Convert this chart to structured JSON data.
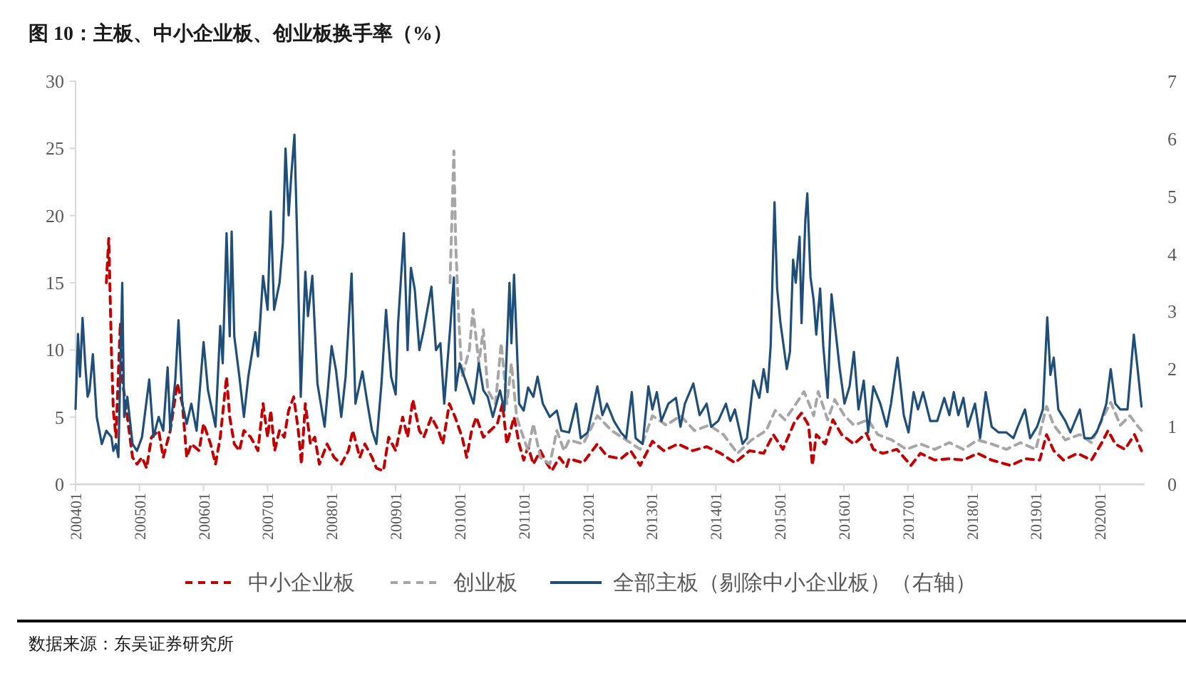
{
  "chart_data": {
    "type": "line",
    "title": "图 10：主板、中小企业板、创业板换手率（%）",
    "annotations": [
      "数据来源：东吴证券研究所"
    ],
    "legend": "bottom",
    "grid": false,
    "xlim": [
      "2004-01-01",
      "2020-09-13"
    ],
    "xticks": [
      {
        "value": "2004-01",
        "label": "200401"
      },
      {
        "value": "2005-01",
        "label": "200501"
      },
      {
        "value": "2006-01",
        "label": "200601"
      },
      {
        "value": "2007-01",
        "label": "200701"
      },
      {
        "value": "2008-01",
        "label": "200801"
      },
      {
        "value": "2009-01",
        "label": "200901"
      },
      {
        "value": "2010-01",
        "label": "201001"
      },
      {
        "value": "2011-01",
        "label": "201101"
      },
      {
        "value": "2012-01",
        "label": "201201"
      },
      {
        "value": "2013-01",
        "label": "201301"
      },
      {
        "value": "2014-01",
        "label": "201401"
      },
      {
        "value": "2015-01",
        "label": "201501"
      },
      {
        "value": "2016-01",
        "label": "201601"
      },
      {
        "value": "2017-01",
        "label": "201701"
      },
      {
        "value": "2018-01",
        "label": "201801"
      },
      {
        "value": "2019-01",
        "label": "201901"
      },
      {
        "value": "2020-01",
        "label": "202001"
      }
    ],
    "ylim": [
      0,
      30
    ],
    "yticks": [
      0,
      5,
      10,
      15,
      20,
      25,
      30
    ],
    "y2lim": [
      0,
      7
    ],
    "y2ticks": [
      0,
      1,
      2,
      3,
      4,
      5,
      6,
      7
    ],
    "series": [
      {
        "name": "中小企业板",
        "color": "#c00000",
        "line_style": "dashed",
        "x": [
          "2004-06-25",
          "2004-07-09",
          "2004-07-24",
          "2004-08-04",
          "2004-08-19",
          "2004-09-13",
          "2004-09-27",
          "2004-10-23",
          "2004-11-22",
          "2004-12-17",
          "2005-01-15",
          "2005-02-10",
          "2005-03-10",
          "2005-04-20",
          "2005-05-16",
          "2005-06-25",
          "2005-08-04",
          "2005-09-02",
          "2005-09-27",
          "2005-10-23",
          "2005-12-06",
          "2006-01-01",
          "2006-02-10",
          "2006-03-10",
          "2006-04-06",
          "2006-05-12",
          "2006-05-30",
          "2006-06-25",
          "2006-07-24",
          "2006-08-19",
          "2006-09-27",
          "2006-11-07",
          "2006-12-06",
          "2007-01-01",
          "2007-01-19",
          "2007-02-10",
          "2007-03-10",
          "2007-04-06",
          "2007-05-01",
          "2007-05-30",
          "2007-06-25",
          "2007-07-13",
          "2007-08-04",
          "2007-09-02",
          "2007-09-27",
          "2007-10-23",
          "2007-12-06",
          "2008-01-15",
          "2008-02-25",
          "2008-04-06",
          "2008-05-01",
          "2008-06-10",
          "2008-07-09",
          "2008-08-19",
          "2008-09-13",
          "2008-10-23",
          "2008-11-22",
          "2009-01-01",
          "2009-02-10",
          "2009-03-10",
          "2009-04-09",
          "2009-05-16",
          "2009-06-10",
          "2009-07-24",
          "2009-09-02",
          "2009-09-27",
          "2009-11-03",
          "2009-12-06",
          "2010-01-15",
          "2010-02-10",
          "2010-03-10",
          "2010-04-06",
          "2010-05-16",
          "2010-06-25",
          "2010-08-04",
          "2010-09-02",
          "2010-09-27",
          "2010-11-07",
          "2010-12-06",
          "2011-01-01",
          "2011-01-26",
          "2011-02-25",
          "2011-04-06",
          "2011-05-16",
          "2011-06-10",
          "2011-07-24",
          "2011-09-02",
          "2011-09-17",
          "2011-12-06",
          "2012-02-25",
          "2012-04-20",
          "2012-07-09",
          "2012-09-02",
          "2012-10-27",
          "2013-01-05",
          "2013-03-10",
          "2013-05-30",
          "2013-08-22",
          "2013-11-10",
          "2014-01-30",
          "2014-04-20",
          "2014-07-13",
          "2014-10-01",
          "2014-11-25",
          "2015-01-19",
          "2015-03-25",
          "2015-05-05",
          "2015-06-14",
          "2015-07-06",
          "2015-07-28",
          "2015-09-17",
          "2015-10-31",
          "2015-12-20",
          "2016-02-28",
          "2016-05-09",
          "2016-06-18",
          "2016-08-11",
          "2016-10-31",
          "2017-01-19",
          "2017-03-14",
          "2017-06-03",
          "2017-08-26",
          "2017-11-14",
          "2018-02-03",
          "2018-04-24",
          "2018-08-11",
          "2018-10-31",
          "2019-01-23",
          "2019-03-03",
          "2019-04-13",
          "2019-06-07",
          "2019-08-26",
          "2019-11-14",
          "2020-01-08",
          "2020-02-17",
          "2020-03-29",
          "2020-05-23",
          "2020-07-17",
          "2020-08-26"
        ],
        "values": [
          15,
          18.3,
          10,
          5.5,
          3.5,
          12,
          7.5,
          5,
          2,
          1.5,
          2,
          1.2,
          3.5,
          4,
          2,
          4,
          7.5,
          6,
          2,
          3,
          2.5,
          4.5,
          3,
          1.5,
          3.5,
          8,
          5,
          3,
          2.5,
          4,
          3.5,
          2.5,
          6,
          3.5,
          5.5,
          2.5,
          4,
          3.5,
          5.5,
          6.5,
          4,
          1.5,
          6,
          3,
          3.5,
          1.5,
          3,
          2,
          1.5,
          2.5,
          4,
          2,
          3,
          2,
          1.2,
          1,
          3.5,
          2.5,
          5,
          3.5,
          6.3,
          4,
          3.5,
          5,
          4,
          3,
          6,
          5,
          3.5,
          2,
          4,
          5,
          3.5,
          4,
          4.5,
          6,
          3,
          5,
          3,
          1.8,
          2.8,
          1.5,
          2.5,
          1.5,
          1,
          2,
          1.3,
          1.9,
          1.6,
          3,
          2.1,
          1.9,
          2.5,
          1.4,
          3.2,
          2.5,
          3,
          2.5,
          2.8,
          2.3,
          1.6,
          2.5,
          2.3,
          3.7,
          2.6,
          4.6,
          5.3,
          4.4,
          1.4,
          3.7,
          3,
          4.8,
          3.7,
          3,
          3.8,
          2.6,
          2.3,
          2.6,
          1.4,
          2.3,
          1.8,
          1.9,
          1.8,
          2.3,
          1.8,
          1.4,
          1.9,
          1.8,
          3.7,
          2.5,
          1.8,
          2.3,
          1.8,
          3,
          4,
          3,
          2.6,
          3.7,
          2.5
        ]
      },
      {
        "name": "创业板",
        "color": "#a6a6a6",
        "line_style": "dashed",
        "x": [
          "2009-11-07",
          "2009-11-29",
          "2009-12-09",
          "2009-12-28",
          "2010-01-15",
          "2010-02-25",
          "2010-03-18",
          "2010-04-20",
          "2010-05-16",
          "2010-06-10",
          "2010-07-24",
          "2010-08-26",
          "2010-09-27",
          "2010-10-23",
          "2010-11-22",
          "2010-12-17",
          "2011-01-26",
          "2011-02-25",
          "2011-04-06",
          "2011-05-30",
          "2011-07-09",
          "2011-08-19",
          "2011-09-17",
          "2011-12-06",
          "2012-02-25",
          "2012-05-16",
          "2012-08-08",
          "2012-10-27",
          "2013-01-05",
          "2013-03-25",
          "2013-06-14",
          "2013-09-02",
          "2013-11-25",
          "2014-02-14",
          "2014-05-05",
          "2014-07-24",
          "2014-10-16",
          "2014-12-06",
          "2015-01-30",
          "2015-04-09",
          "2015-05-19",
          "2015-06-14",
          "2015-07-13",
          "2015-08-08",
          "2015-10-01",
          "2015-11-10",
          "2016-01-05",
          "2016-02-28",
          "2016-05-19",
          "2016-07-13",
          "2016-10-01",
          "2016-12-24",
          "2017-03-14",
          "2017-06-03",
          "2017-08-26",
          "2017-11-14",
          "2018-02-03",
          "2018-04-24",
          "2018-07-17",
          "2018-10-05",
          "2019-01-01",
          "2019-03-03",
          "2019-04-13",
          "2019-06-18",
          "2019-09-09",
          "2019-11-14",
          "2020-01-23",
          "2020-03-03",
          "2020-04-27",
          "2020-06-21",
          "2020-07-31",
          "2020-08-26"
        ],
        "values": [
          15,
          24.8,
          18,
          12,
          8,
          10,
          13,
          9,
          11.5,
          7,
          6,
          10.5,
          6,
          9,
          5,
          4,
          2.5,
          4.5,
          2,
          1.5,
          4,
          2.5,
          3.3,
          3,
          5.1,
          4,
          3.3,
          2.6,
          5.1,
          4.4,
          5.1,
          4,
          4.4,
          3.7,
          2.3,
          3.3,
          4,
          5.5,
          4.8,
          6.1,
          6.9,
          6.1,
          5.1,
          6.9,
          4.8,
          6.3,
          5.1,
          4.4,
          4.8,
          3.7,
          3.3,
          2.6,
          3,
          2.6,
          3.1,
          2.6,
          3.3,
          3,
          2.6,
          3.1,
          2.6,
          5.8,
          4.4,
          3.3,
          3.7,
          3.1,
          5.1,
          6.1,
          4.4,
          5.1,
          4.4,
          4
        ]
      },
      {
        "name": "全部主板（剔除中小企业板）（右轴）",
        "color": "#1f4e79",
        "line_style": "solid",
        "axis": "y2",
        "x": [
          "2004-01-01",
          "2004-01-15",
          "2004-01-26",
          "2004-02-10",
          "2004-02-25",
          "2004-03-10",
          "2004-03-21",
          "2004-04-09",
          "2004-05-01",
          "2004-05-30",
          "2004-06-25",
          "2004-07-24",
          "2004-08-04",
          "2004-08-19",
          "2004-09-02",
          "2004-09-24",
          "2004-10-05",
          "2004-10-23",
          "2004-11-22",
          "2004-12-17",
          "2005-01-15",
          "2005-02-25",
          "2005-03-21",
          "2005-04-20",
          "2005-05-16",
          "2005-06-10",
          "2005-06-25",
          "2005-07-24",
          "2005-08-11",
          "2005-09-02",
          "2005-09-27",
          "2005-10-23",
          "2005-11-22",
          "2006-01-01",
          "2006-01-26",
          "2006-03-10",
          "2006-04-06",
          "2006-04-20",
          "2006-05-12",
          "2006-05-30",
          "2006-06-10",
          "2006-06-25",
          "2006-07-24",
          "2006-08-19",
          "2006-09-13",
          "2006-10-23",
          "2006-11-07",
          "2006-12-06",
          "2007-01-01",
          "2007-01-19",
          "2007-02-07",
          "2007-03-10",
          "2007-03-29",
          "2007-04-13",
          "2007-05-01",
          "2007-05-16",
          "2007-06-03",
          "2007-06-21",
          "2007-07-09",
          "2007-08-04",
          "2007-08-19",
          "2007-09-13",
          "2007-10-12",
          "2007-11-22",
          "2008-01-01",
          "2008-01-26",
          "2008-02-25",
          "2008-03-21",
          "2008-04-24",
          "2008-05-16",
          "2008-06-25",
          "2008-07-24",
          "2008-08-19",
          "2008-09-13",
          "2008-10-12",
          "2008-11-07",
          "2008-12-06",
          "2009-01-01",
          "2009-01-15",
          "2009-02-17",
          "2009-03-10",
          "2009-03-29",
          "2009-04-20",
          "2009-05-16",
          "2009-06-10",
          "2009-07-24",
          "2009-08-19",
          "2009-09-13",
          "2009-10-05",
          "2009-11-07",
          "2009-11-29",
          "2009-12-09",
          "2010-01-01",
          "2010-02-10",
          "2010-03-21",
          "2010-04-20",
          "2010-05-16",
          "2010-06-10",
          "2010-07-09",
          "2010-08-19",
          "2010-09-13",
          "2010-10-12",
          "2010-10-23",
          "2010-11-07",
          "2010-12-06",
          "2011-01-01",
          "2011-01-26",
          "2011-02-25",
          "2011-03-21",
          "2011-04-20",
          "2011-05-30",
          "2011-07-09",
          "2011-08-04",
          "2011-09-17",
          "2011-10-27",
          "2011-11-22",
          "2012-01-01",
          "2012-02-25",
          "2012-03-25",
          "2012-04-20",
          "2012-05-30",
          "2012-07-09",
          "2012-08-08",
          "2012-09-09",
          "2012-10-01",
          "2012-11-10",
          "2012-12-13",
          "2013-01-05",
          "2013-01-30",
          "2013-02-25",
          "2013-04-06",
          "2013-05-19",
          "2013-06-14",
          "2013-07-09",
          "2013-08-26",
          "2013-10-01",
          "2013-11-10",
          "2013-12-06",
          "2014-01-15",
          "2014-02-28",
          "2014-03-25",
          "2014-04-20",
          "2014-06-03",
          "2014-06-28",
          "2014-08-04",
          "2014-09-06",
          "2014-10-01",
          "2014-10-23",
          "2014-11-10",
          "2014-12-02",
          "2014-12-17",
          "2015-01-05",
          "2015-02-10",
          "2015-02-28",
          "2015-03-18",
          "2015-04-02",
          "2015-04-24",
          "2015-05-05",
          "2015-05-27",
          "2015-06-07",
          "2015-06-25",
          "2015-07-13",
          "2015-07-28",
          "2015-08-19",
          "2015-09-06",
          "2015-10-01",
          "2015-10-23",
          "2015-11-10",
          "2015-12-09",
          "2016-01-05",
          "2016-02-03",
          "2016-02-28",
          "2016-03-25",
          "2016-04-24",
          "2016-05-19",
          "2016-06-18",
          "2016-07-28",
          "2016-09-02",
          "2016-09-27",
          "2016-11-03",
          "2016-12-09",
          "2017-01-05",
          "2017-02-03",
          "2017-02-28",
          "2017-03-29",
          "2017-05-09",
          "2017-06-18",
          "2017-07-28",
          "2017-08-26",
          "2017-09-20",
          "2017-10-16",
          "2017-11-14",
          "2017-12-09",
          "2018-01-19",
          "2018-02-17",
          "2018-03-21",
          "2018-04-24",
          "2018-06-03",
          "2018-07-17",
          "2018-08-26",
          "2018-09-20",
          "2018-10-31",
          "2018-11-29",
          "2019-01-08",
          "2019-02-10",
          "2019-03-07",
          "2019-03-25",
          "2019-04-13",
          "2019-05-09",
          "2019-06-18",
          "2019-07-17",
          "2019-09-09",
          "2019-10-05",
          "2019-11-14",
          "2019-12-13",
          "2020-01-08",
          "2020-02-07",
          "2020-03-03",
          "2020-03-29",
          "2020-04-27",
          "2020-06-07",
          "2020-07-13",
          "2020-08-04",
          "2020-08-26"
        ],
        "values": [
          1.31,
          2.61,
          1.87,
          2.89,
          2.1,
          1.52,
          1.63,
          2.26,
          1.17,
          0.7,
          0.93,
          0.82,
          0.58,
          0.7,
          0.47,
          3.5,
          1.17,
          1.52,
          0.7,
          0.58,
          0.82,
          1.82,
          0.82,
          1.17,
          0.93,
          2.03,
          0.93,
          1.82,
          2.85,
          1.4,
          1.05,
          1.4,
          0.93,
          2.47,
          1.63,
          1.0,
          2.75,
          2.1,
          4.36,
          2.57,
          4.39,
          2.57,
          1.87,
          1.17,
          1.87,
          2.64,
          2.22,
          3.62,
          3.03,
          4.74,
          3.03,
          3.5,
          4.2,
          5.83,
          4.67,
          5.37,
          6.07,
          3.97,
          1.52,
          3.69,
          2.92,
          3.62,
          1.75,
          1.0,
          2.4,
          1.98,
          1.17,
          1.87,
          3.66,
          1.4,
          1.96,
          1.4,
          0.93,
          0.7,
          1.75,
          3.03,
          1.87,
          1.56,
          2.8,
          4.36,
          2.33,
          3.76,
          3.38,
          2.33,
          2.68,
          3.43,
          2.33,
          2.45,
          1.4,
          2.68,
          3.59,
          1.63,
          2.1,
          1.75,
          1.4,
          2.1,
          1.63,
          1.52,
          1.17,
          1.63,
          1.28,
          3.5,
          2.45,
          3.64,
          1.4,
          1.28,
          1.68,
          1.52,
          1.87,
          1.4,
          1.17,
          1.28,
          0.93,
          0.9,
          1.4,
          0.8,
          0.9,
          1.7,
          1.2,
          1.4,
          1.1,
          0.9,
          0.8,
          1.6,
          0.8,
          0.7,
          1.7,
          1.3,
          1.6,
          1.1,
          1.4,
          1.5,
          1.0,
          1.4,
          1.75,
          1.2,
          1.4,
          1.0,
          1.1,
          1.4,
          1.1,
          1.3,
          0.7,
          0.8,
          1.8,
          1.5,
          2.0,
          1.6,
          2.4,
          4.9,
          3.4,
          2.8,
          2.0,
          2.3,
          3.9,
          3.5,
          4.3,
          2.8,
          4.6,
          5.05,
          3.6,
          3.2,
          2.6,
          3.4,
          2.4,
          1.5,
          3.3,
          2.8,
          2.0,
          1.4,
          1.7,
          2.3,
          1.3,
          1.8,
          0.9,
          1.7,
          1.4,
          1.0,
          1.4,
          2.2,
          1.2,
          0.9,
          1.6,
          1.3,
          1.6,
          1.1,
          1.1,
          1.5,
          1.2,
          1.6,
          1.2,
          1.5,
          1.0,
          1.4,
          0.8,
          1.6,
          1.0,
          0.9,
          0.9,
          0.8,
          1.0,
          1.3,
          0.8,
          1.0,
          1.3,
          2.9,
          1.9,
          2.2,
          1.3,
          1.1,
          0.9,
          1.3,
          0.8,
          0.8,
          0.9,
          1.1,
          1.4,
          2.0,
          1.4,
          1.3,
          1.3,
          2.6,
          2.0,
          1.35
        ]
      }
    ]
  }
}
